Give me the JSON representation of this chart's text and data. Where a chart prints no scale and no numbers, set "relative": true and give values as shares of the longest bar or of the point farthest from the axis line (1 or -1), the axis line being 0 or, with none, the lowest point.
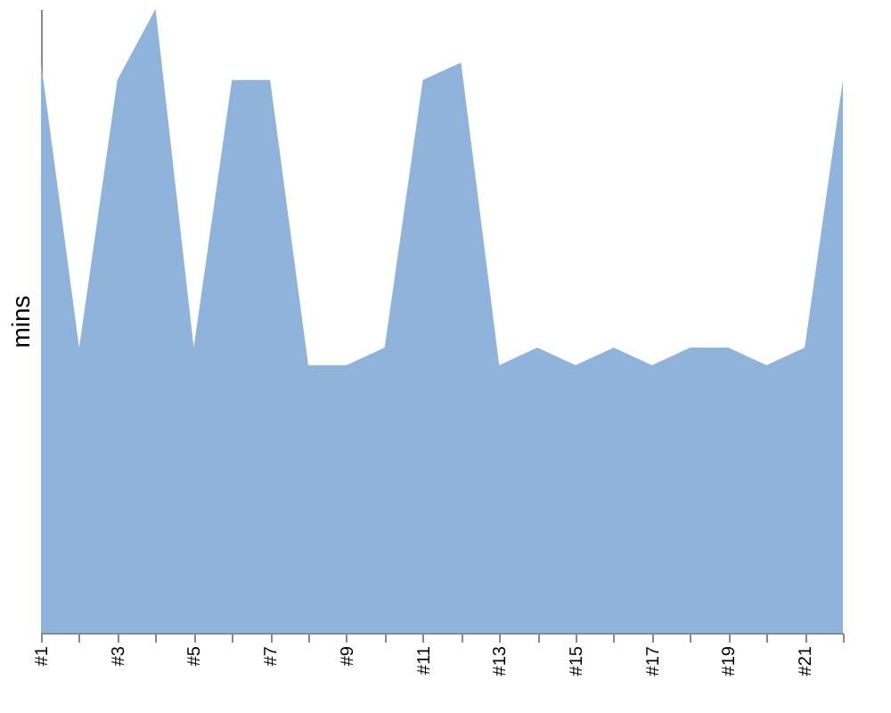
{
  "chart_data": {
    "type": "area",
    "relative": true,
    "ylabel": "mins",
    "categories": [
      "#1",
      null,
      "#3",
      null,
      "#5",
      null,
      "#7",
      null,
      "#9",
      null,
      "#11",
      null,
      "#13",
      null,
      "#15",
      null,
      "#17",
      null,
      "#19",
      null,
      "#21",
      null
    ],
    "values": [
      0.914,
      0.457,
      0.886,
      1,
      0.457,
      0.886,
      0.886,
      0.429,
      0.429,
      0.457,
      0.886,
      0.914,
      0.429,
      0.457,
      0.429,
      0.457,
      0.429,
      0.457,
      0.457,
      0.429,
      0.457,
      0.886
    ],
    "color": "#8fb3db"
  }
}
